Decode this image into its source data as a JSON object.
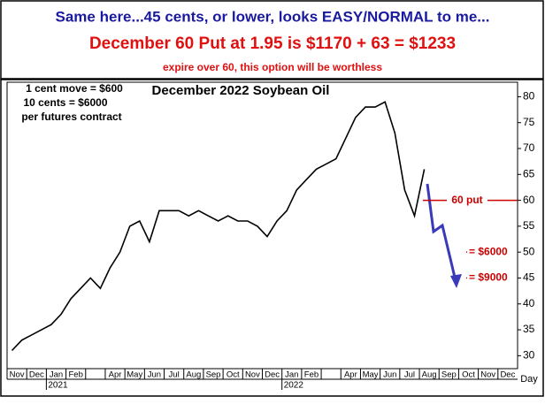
{
  "header": {
    "line1": "Same here...45 cents, or lower, looks EASY/NORMAL to me...",
    "line2": "December 60 Put at 1.95 is $1170 + 63 = $1233",
    "line3": "expire over 60, this option will be worthless"
  },
  "chart_data": {
    "type": "line",
    "title": "December 2022 Soybean Oil",
    "note_lines": [
      "1 cent move = $600",
      "10 cents = $6000",
      "per futures contract"
    ],
    "x_label": "Day",
    "categories": [
      "Nov",
      null,
      "Dec",
      null,
      "Jan",
      null,
      "Feb",
      null,
      null,
      null,
      "Apr",
      null,
      "May",
      null,
      "Jun",
      null,
      "Jul",
      null,
      "Aug",
      null,
      "Sep",
      null,
      "Oct",
      null,
      "Nov",
      null,
      "Dec",
      null,
      "Jan",
      null,
      "Feb",
      null,
      null,
      null,
      "Apr",
      null,
      "May",
      null,
      "Jun",
      null,
      "Jul",
      null,
      "Aug",
      null,
      "Sep",
      null,
      "Oct",
      null,
      "Nov",
      null,
      "Dec",
      null
    ],
    "category_years": [
      null,
      null,
      null,
      null,
      "2021",
      null,
      null,
      null,
      null,
      null,
      null,
      null,
      null,
      null,
      null,
      null,
      null,
      null,
      null,
      null,
      null,
      null,
      null,
      null,
      null,
      null,
      null,
      null,
      "2022",
      null,
      null,
      null,
      null,
      null,
      null,
      null,
      null,
      null,
      null,
      null,
      null,
      null,
      null,
      null,
      null,
      null,
      null,
      null,
      null,
      null,
      null,
      null
    ],
    "series": [
      {
        "color": "#000000",
        "values": [
          31,
          33,
          34,
          35,
          36,
          38,
          41,
          43,
          45,
          43,
          47,
          50,
          55,
          56,
          52,
          58,
          58,
          58,
          57,
          58,
          57,
          56,
          57,
          56,
          56,
          55,
          53,
          56,
          58,
          62,
          64,
          66,
          67,
          68,
          72,
          76,
          78,
          78,
          79,
          73,
          62,
          57,
          66,
          null,
          null,
          null,
          null,
          null,
          null,
          null,
          null,
          null
        ]
      }
    ],
    "ylim": [
      27.5,
      82.8
    ],
    "yticks": [
      30,
      35,
      40,
      45,
      50,
      55,
      60,
      65,
      70,
      75,
      80
    ],
    "reference_lines": [
      {
        "value": 60,
        "label": "60 put",
        "color": "#cc0000"
      }
    ],
    "annotations": [
      {
        "value": 50,
        "label": "= $6000",
        "color": "#cc0000"
      },
      {
        "value": 45,
        "label": "= $9000",
        "color": "#cc0000"
      }
    ]
  }
}
